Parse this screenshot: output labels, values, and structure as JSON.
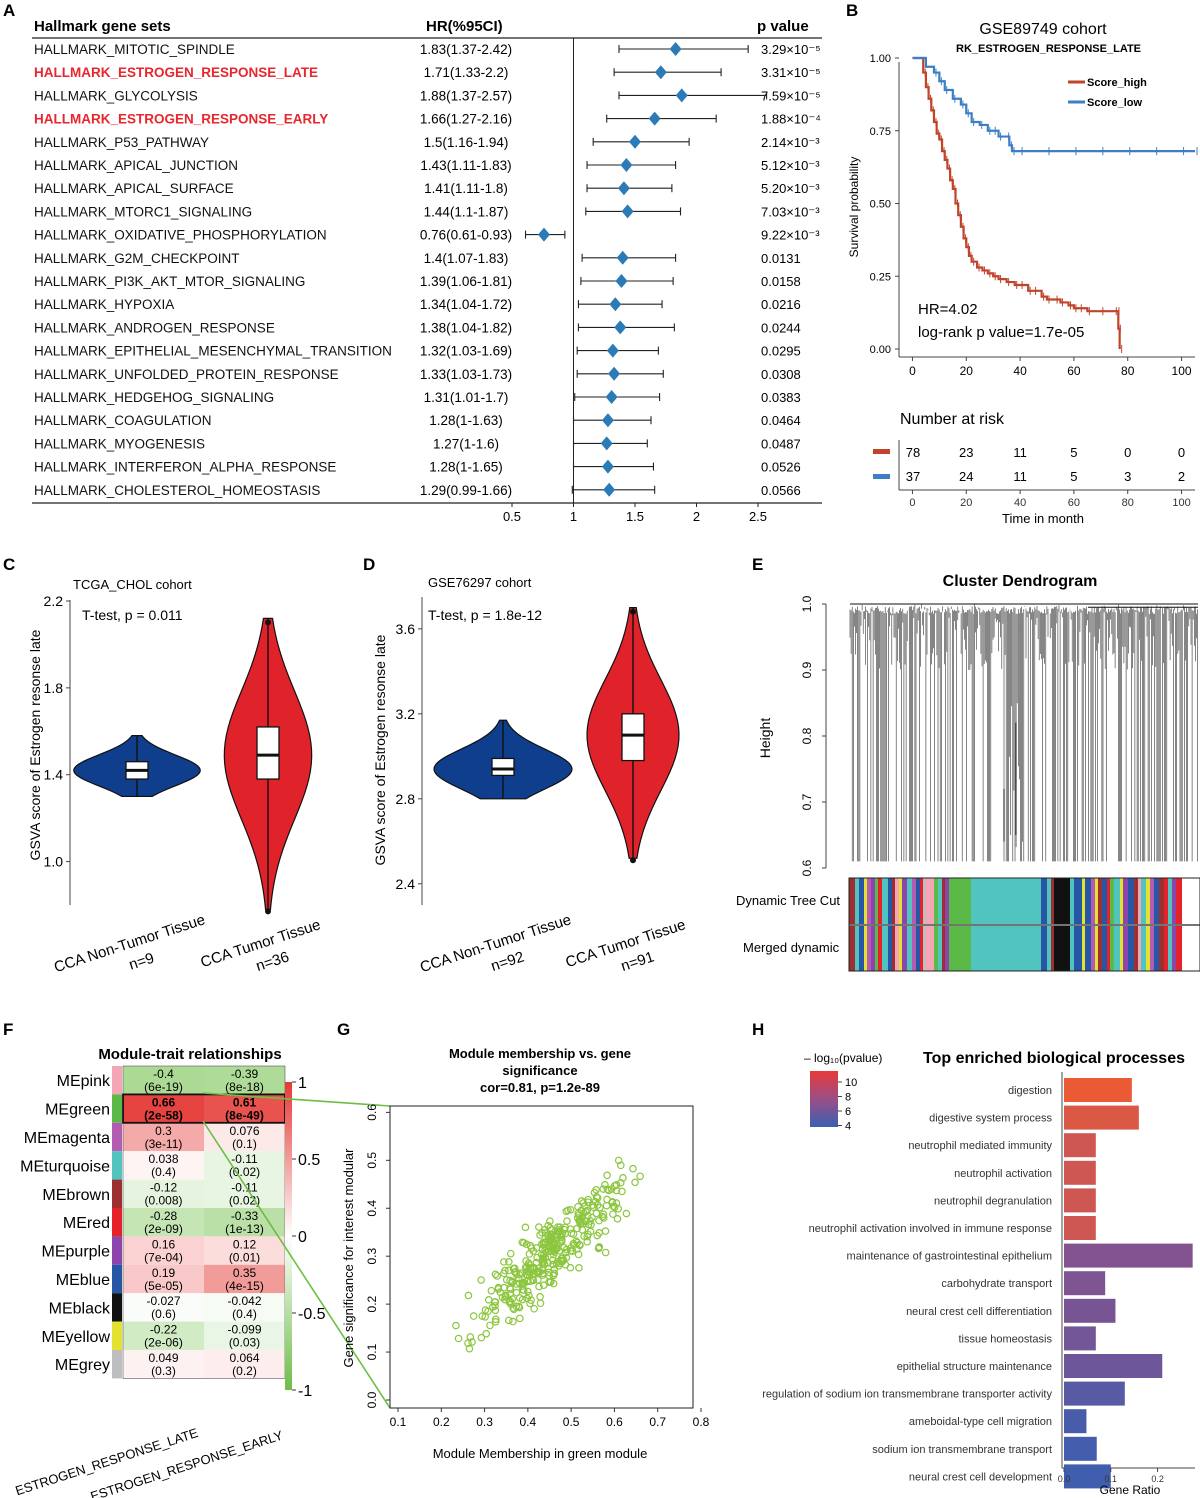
{
  "panel_letters": [
    "A",
    "B",
    "C",
    "D",
    "E",
    "F",
    "G",
    "H"
  ],
  "colors": {
    "forest": "#2C7BB6",
    "highlight_red": "#E8262E",
    "km_high": "#C0442B",
    "km_low": "#3D7FC4",
    "violin_blue": "#0F3F8C",
    "violin_red": "#E0232B",
    "scatter": "#8CC63F",
    "link_line": "#6DBE45",
    "heat_pos": "#E53935",
    "heat_neg": "#6DBE45",
    "go_high": "#EA5B35",
    "go_mid": "#9A4F86",
    "go_low": "#3A5FB0"
  },
  "chart_data": [
    {
      "panel": "A",
      "type": "forest",
      "headers": {
        "name": "Hallmark gene sets",
        "hr": "HR(%95CI)",
        "p": "p value"
      },
      "xticks": [
        "0.5",
        "1",
        "1.5",
        "2",
        "2.5"
      ],
      "xlim": [
        0.5,
        2.5
      ],
      "ref_line": 1,
      "rows": [
        {
          "name": "HALLMARK_MITOTIC_SPINDLE",
          "hr_text": "1.83(1.37-2.42)",
          "hr": 1.83,
          "lo": 1.37,
          "hi": 2.42,
          "p": "3.29×10⁻⁵",
          "highlight": false
        },
        {
          "name": "HALLMARK_ESTROGEN_RESPONSE_LATE",
          "hr_text": "1.71(1.33-2.2)",
          "hr": 1.71,
          "lo": 1.33,
          "hi": 2.2,
          "p": "3.31×10⁻⁵",
          "highlight": true
        },
        {
          "name": "HALLMARK_GLYCOLYSIS",
          "hr_text": "1.88(1.37-2.57)",
          "hr": 1.88,
          "lo": 1.37,
          "hi": 2.57,
          "p": "7.59×10⁻⁵",
          "highlight": false
        },
        {
          "name": "HALLMARK_ESTROGEN_RESPONSE_EARLY",
          "hr_text": "1.66(1.27-2.16)",
          "hr": 1.66,
          "lo": 1.27,
          "hi": 2.16,
          "p": "1.88×10⁻⁴",
          "highlight": true
        },
        {
          "name": "HALLMARK_P53_PATHWAY",
          "hr_text": "1.5(1.16-1.94)",
          "hr": 1.5,
          "lo": 1.16,
          "hi": 1.94,
          "p": "2.14×10⁻³",
          "highlight": false
        },
        {
          "name": "HALLMARK_APICAL_JUNCTION",
          "hr_text": "1.43(1.11-1.83)",
          "hr": 1.43,
          "lo": 1.11,
          "hi": 1.83,
          "p": "5.12×10⁻³",
          "highlight": false
        },
        {
          "name": "HALLMARK_APICAL_SURFACE",
          "hr_text": "1.41(1.11-1.8)",
          "hr": 1.41,
          "lo": 1.11,
          "hi": 1.8,
          "p": "5.20×10⁻³",
          "highlight": false
        },
        {
          "name": "HALLMARK_MTORC1_SIGNALING",
          "hr_text": "1.44(1.1-1.87)",
          "hr": 1.44,
          "lo": 1.1,
          "hi": 1.87,
          "p": "7.03×10⁻³",
          "highlight": false
        },
        {
          "name": "HALLMARK_OXIDATIVE_PHOSPHORYLATION",
          "hr_text": "0.76(0.61-0.93)",
          "hr": 0.76,
          "lo": 0.61,
          "hi": 0.93,
          "p": "9.22×10⁻³",
          "highlight": false
        },
        {
          "name": "HALLMARK_G2M_CHECKPOINT",
          "hr_text": "1.4(1.07-1.83)",
          "hr": 1.4,
          "lo": 1.07,
          "hi": 1.83,
          "p": "0.0131",
          "highlight": false
        },
        {
          "name": "HALLMARK_PI3K_AKT_MTOR_SIGNALING",
          "hr_text": "1.39(1.06-1.81)",
          "hr": 1.39,
          "lo": 1.06,
          "hi": 1.81,
          "p": "0.0158",
          "highlight": false
        },
        {
          "name": "HALLMARK_HYPOXIA",
          "hr_text": "1.34(1.04-1.72)",
          "hr": 1.34,
          "lo": 1.04,
          "hi": 1.72,
          "p": "0.0216",
          "highlight": false
        },
        {
          "name": "HALLMARK_ANDROGEN_RESPONSE",
          "hr_text": "1.38(1.04-1.82)",
          "hr": 1.38,
          "lo": 1.04,
          "hi": 1.82,
          "p": "0.0244",
          "highlight": false
        },
        {
          "name": "HALLMARK_EPITHELIAL_MESENCHYMAL_TRANSITION",
          "hr_text": "1.32(1.03-1.69)",
          "hr": 1.32,
          "lo": 1.03,
          "hi": 1.69,
          "p": "0.0295",
          "highlight": false
        },
        {
          "name": "HALLMARK_UNFOLDED_PROTEIN_RESPONSE",
          "hr_text": "1.33(1.03-1.73)",
          "hr": 1.33,
          "lo": 1.03,
          "hi": 1.73,
          "p": "0.0308",
          "highlight": false
        },
        {
          "name": "HALLMARK_HEDGEHOG_SIGNALING",
          "hr_text": "1.31(1.01-1.7)",
          "hr": 1.31,
          "lo": 1.01,
          "hi": 1.7,
          "p": "0.0383",
          "highlight": false
        },
        {
          "name": "HALLMARK_COAGULATION",
          "hr_text": "1.28(1-1.63)",
          "hr": 1.28,
          "lo": 1.0,
          "hi": 1.63,
          "p": "0.0464",
          "highlight": false
        },
        {
          "name": "HALLMARK_MYOGENESIS",
          "hr_text": "1.27(1-1.6)",
          "hr": 1.27,
          "lo": 1.0,
          "hi": 1.6,
          "p": "0.0487",
          "highlight": false
        },
        {
          "name": "HALLMARK_INTERFERON_ALPHA_RESPONSE",
          "hr_text": "1.28(1-1.65)",
          "hr": 1.28,
          "lo": 1.0,
          "hi": 1.65,
          "p": "0.0526",
          "highlight": false
        },
        {
          "name": "HALLMARK_CHOLESTEROL_HOMEOSTASIS",
          "hr_text": "1.29(0.99-1.66)",
          "hr": 1.29,
          "lo": 0.99,
          "hi": 1.66,
          "p": "0.0566",
          "highlight": false
        }
      ]
    },
    {
      "panel": "B",
      "type": "line",
      "title": "GSE89749 cohort",
      "subtitle": "RK_ESTROGEN_RESPONSE_LATE",
      "ylabel": "Survival probability",
      "xlabel": "Time in month",
      "xlim": [
        -5,
        105
      ],
      "ylim": [
        0,
        1
      ],
      "xticks": [
        "0",
        "20",
        "40",
        "60",
        "80",
        "100"
      ],
      "yticks": [
        "0.00",
        "0.25",
        "0.50",
        "0.75",
        "1.00"
      ],
      "legend": [
        "Score_high",
        "Score_low"
      ],
      "hr_text": "HR=4.02",
      "p_text": "log-rank p value=1.7e-05",
      "risk_title": "Number at risk",
      "risk_high": [
        "78",
        "23",
        "11",
        "5",
        "0",
        "0"
      ],
      "risk_low": [
        "37",
        "24",
        "11",
        "5",
        "3",
        "2"
      ],
      "series": [
        {
          "name": "Score_high",
          "x": [
            0,
            3,
            4,
            5,
            6,
            7,
            8,
            9,
            10,
            11,
            12,
            13,
            14,
            15,
            16,
            17,
            18,
            19,
            20,
            21,
            22,
            24,
            26,
            28,
            30,
            32,
            35,
            38,
            40,
            43,
            45,
            48,
            50,
            53,
            55,
            58,
            60,
            62,
            65,
            70,
            75,
            76,
            76.5,
            77
          ],
          "y": [
            1.0,
            1.0,
            0.95,
            0.9,
            0.86,
            0.82,
            0.78,
            0.74,
            0.72,
            0.68,
            0.65,
            0.62,
            0.58,
            0.55,
            0.5,
            0.46,
            0.42,
            0.38,
            0.35,
            0.32,
            0.3,
            0.28,
            0.27,
            0.26,
            0.25,
            0.24,
            0.23,
            0.22,
            0.22,
            0.2,
            0.2,
            0.18,
            0.17,
            0.17,
            0.16,
            0.15,
            0.14,
            0.14,
            0.13,
            0.13,
            0.13,
            0.13,
            0.07,
            0.0
          ]
        },
        {
          "name": "Score_low",
          "x": [
            0,
            5,
            8,
            10,
            12,
            15,
            18,
            20,
            22,
            25,
            28,
            30,
            32,
            35,
            36,
            37,
            40,
            50,
            60,
            70,
            80,
            90,
            100,
            105
          ],
          "y": [
            1.0,
            0.97,
            0.95,
            0.92,
            0.89,
            0.86,
            0.84,
            0.81,
            0.78,
            0.77,
            0.75,
            0.75,
            0.73,
            0.73,
            0.7,
            0.68,
            0.68,
            0.68,
            0.68,
            0.68,
            0.68,
            0.68,
            0.68,
            0.68
          ]
        }
      ]
    },
    {
      "panel": "C",
      "type": "violin",
      "title": "TCGA_CHOL cohort",
      "test_text": "T-test, p = 0.011",
      "ylabel": "GSVA score of Estrogen resonse late",
      "yticks": [
        "1.0",
        "1.4",
        "1.8",
        "2.2"
      ],
      "ylim": [
        0.8,
        2.2
      ],
      "groups": [
        {
          "label": "CCA Non-Tumor Tissue",
          "n": "n=9",
          "min": 1.3,
          "q1": 1.38,
          "median": 1.42,
          "q3": 1.46,
          "max": 1.58,
          "width": 0.55,
          "color": "blue"
        },
        {
          "label": "CCA Tumor Tissue",
          "n": "n=36",
          "min": 0.78,
          "q1": 1.38,
          "median": 1.49,
          "q3": 1.62,
          "max": 2.12,
          "width": 0.38,
          "color": "red"
        }
      ]
    },
    {
      "panel": "D",
      "type": "violin",
      "title": "GSE76297 cohort",
      "test_text": "T-test, p = 1.8e-12",
      "ylabel": "GSVA score of Estrogen resonse late",
      "yticks": [
        "2.4",
        "2.8",
        "3.2",
        "3.6"
      ],
      "ylim": [
        2.3,
        3.75
      ],
      "groups": [
        {
          "label": "CCA Non-Tumor Tissue",
          "n": "n=92",
          "min": 2.8,
          "q1": 2.91,
          "median": 2.94,
          "q3": 2.99,
          "max": 3.17,
          "width": 0.6,
          "color": "blue"
        },
        {
          "label": "CCA Tumor Tissue",
          "n": "n=91",
          "min": 2.52,
          "q1": 2.98,
          "median": 3.1,
          "q3": 3.2,
          "max": 3.7,
          "width": 0.4,
          "color": "red"
        }
      ]
    },
    {
      "panel": "E",
      "type": "dendrogram",
      "title": "Cluster Dendrogram",
      "ylabel": "Height",
      "yticks": [
        "0.6",
        "0.7",
        "0.8",
        "0.9",
        "1.0"
      ],
      "ylim": [
        0.6,
        1.0
      ],
      "row_labels": [
        "Dynamic Tree Cut",
        "Merged dynamic"
      ]
    },
    {
      "panel": "F",
      "type": "heatmap",
      "title": "Module-trait relationships",
      "columns": [
        "ESTROGEN_RESPONSE_LATE",
        "ESTROGEN_RESPONSE_EARLY"
      ],
      "scale_ticks": [
        "1",
        "0.5",
        "0",
        "-0.5",
        "-1"
      ],
      "rows": [
        {
          "module": "MEpink",
          "swatch": "#F4A6B6",
          "cells": [
            {
              "r": -0.4,
              "p": "(6e-19)"
            },
            {
              "r": -0.39,
              "p": "(8e-18)"
            }
          ]
        },
        {
          "module": "MEgreen",
          "swatch": "#5BB947",
          "cells": [
            {
              "r": 0.66,
              "p": "(2e-58)"
            },
            {
              "r": 0.61,
              "p": "(8e-49)"
            }
          ]
        },
        {
          "module": "MEmagenta",
          "swatch": "#B45CB4",
          "cells": [
            {
              "r": 0.3,
              "p": "(3e-11)"
            },
            {
              "r": 0.076,
              "p": "(0.1)"
            }
          ]
        },
        {
          "module": "MEturquoise",
          "swatch": "#52C4C0",
          "cells": [
            {
              "r": 0.038,
              "p": "(0.4)"
            },
            {
              "r": -0.11,
              "p": "(0.02)"
            }
          ]
        },
        {
          "module": "MEbrown",
          "swatch": "#9C2F2F",
          "cells": [
            {
              "r": -0.12,
              "p": "(0.008)"
            },
            {
              "r": -0.11,
              "p": "(0.02)"
            }
          ]
        },
        {
          "module": "MEred",
          "swatch": "#E52229",
          "cells": [
            {
              "r": -0.28,
              "p": "(2e-09)"
            },
            {
              "r": -0.33,
              "p": "(1e-13)"
            }
          ]
        },
        {
          "module": "MEpurple",
          "swatch": "#8E44AD",
          "cells": [
            {
              "r": 0.16,
              "p": "(7e-04)"
            },
            {
              "r": 0.12,
              "p": "(0.01)"
            }
          ]
        },
        {
          "module": "MEblue",
          "swatch": "#2657A6",
          "cells": [
            {
              "r": 0.19,
              "p": "(5e-05)"
            },
            {
              "r": 0.35,
              "p": "(4e-15)"
            }
          ]
        },
        {
          "module": "MEblack",
          "swatch": "#111111",
          "cells": [
            {
              "r": -0.027,
              "p": "(0.6)"
            },
            {
              "r": -0.042,
              "p": "(0.4)"
            }
          ]
        },
        {
          "module": "MEyellow",
          "swatch": "#E3E232",
          "cells": [
            {
              "r": -0.22,
              "p": "(2e-06)"
            },
            {
              "r": -0.099,
              "p": "(0.03)"
            }
          ]
        },
        {
          "module": "MEgrey",
          "swatch": "#BEBEBE",
          "cells": [
            {
              "r": 0.049,
              "p": "(0.3)"
            },
            {
              "r": 0.064,
              "p": "(0.2)"
            }
          ]
        }
      ]
    },
    {
      "panel": "G",
      "type": "scatter",
      "title_lines": [
        "Module membership vs. gene",
        "significance",
        "cor=0.81, p=1.2e-89"
      ],
      "xlabel": "Module Membership in green module",
      "ylabel": "Gene significance for interest modular",
      "xlim": [
        0.1,
        0.8
      ],
      "ylim": [
        0.0,
        0.63
      ],
      "xticks": [
        "0.1",
        "0.2",
        "0.3",
        "0.4",
        "0.5",
        "0.6",
        "0.7",
        "0.8"
      ],
      "yticks": [
        "0.0",
        "0.1",
        "0.2",
        "0.3",
        "0.4",
        "0.5",
        "0.6"
      ],
      "fit": {
        "slope": 0.78,
        "intercept": -0.05,
        "noise": 0.06,
        "n": 340,
        "xmin": 0.12,
        "xmax": 0.78
      }
    },
    {
      "panel": "H",
      "type": "bar",
      "title": "Top enriched biological processes",
      "legend_title": "– log₁₀(pvalue)",
      "legend_ticks": [
        "10",
        "8",
        "6",
        "4"
      ],
      "xlabel": "Gene Ratio",
      "xticks": [
        "0.0",
        "0.1",
        "0.2"
      ],
      "xlim": [
        0,
        0.28
      ],
      "categories": [
        "digestion",
        "digestive system process",
        "neutrophil mediated immunity",
        "neutrophil activation",
        "neutrophil degranulation",
        "neutrophil activation involved in immune response",
        "maintenance of gastrointestinal epithelium",
        "carbohydrate transport",
        "neural crest cell differentiation",
        "tissue homeostasis",
        "epithelial structure maintenance",
        "regulation of sodium ion transmembrane transporter activity",
        "ameboidal-type cell migration",
        "sodium ion transmembrane transport",
        "neural crest cell development"
      ],
      "values": [
        0.145,
        0.16,
        0.068,
        0.068,
        0.068,
        0.068,
        0.275,
        0.088,
        0.11,
        0.068,
        0.21,
        0.13,
        0.048,
        0.07,
        0.1
      ],
      "neglog10p": [
        11.6,
        10.9,
        10.3,
        10.3,
        10.3,
        10.3,
        6.9,
        6.7,
        6.4,
        6.2,
        6.0,
        5.2,
        4.6,
        4.4,
        4.2
      ]
    }
  ]
}
